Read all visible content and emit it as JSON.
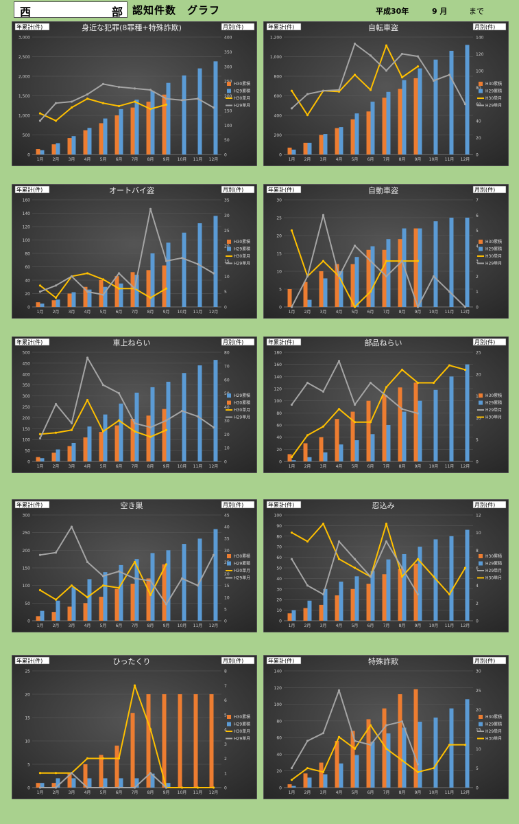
{
  "header": {
    "region_left": "西",
    "region_right": "部",
    "title": "認知件数　グラフ",
    "era_year": "平成30年",
    "month": "9 月",
    "until": "まで"
  },
  "labels": {
    "left_axis": "年累計(件)",
    "right_axis": "月別(件)"
  },
  "colors": {
    "bg_outer": "#a9d18e",
    "chart_bg": "#3a3a3a",
    "h30_cum": "#ed7d31",
    "h29_cum": "#5b9bd5",
    "h30_month": "#ffc000",
    "h29_month": "#a5a5a5"
  },
  "chart_data": [
    {
      "type": "bar",
      "title": "身近な犯罪(8罪種+特殊詐欺)",
      "categories": [
        "1月",
        "2月",
        "3月",
        "4月",
        "5月",
        "6月",
        "7月",
        "8月",
        "9月",
        "10月",
        "11月",
        "12月"
      ],
      "ylim": [
        0,
        3000
      ],
      "y_step": 500,
      "y2lim": [
        0,
        400
      ],
      "y2_step": 50,
      "legend_order": [
        "h30_cum",
        "h29_cum",
        "h30_month",
        "h29_month"
      ],
      "series": [
        {
          "name": "H30累積",
          "key": "h30_cum",
          "axis": "left",
          "values": [
            140,
            260,
            420,
            620,
            800,
            1000,
            1200,
            1350,
            1530,
            null,
            null,
            null
          ]
        },
        {
          "name": "H29累積",
          "key": "h29_cum",
          "axis": "left",
          "values": [
            110,
            290,
            470,
            680,
            920,
            1160,
            1400,
            1620,
            1830,
            2020,
            2200,
            2380
          ]
        },
        {
          "name": "H30単月",
          "key": "h30_month",
          "axis": "right",
          "values": [
            140,
            115,
            160,
            190,
            175,
            165,
            180,
            155,
            170,
            null,
            null,
            null
          ]
        },
        {
          "name": "H29単月",
          "key": "h29_month",
          "axis": "right",
          "values": [
            115,
            175,
            180,
            205,
            240,
            230,
            225,
            220,
            190,
            185,
            190,
            160
          ]
        }
      ]
    },
    {
      "type": "bar",
      "title": "自転車盗",
      "categories": [
        "1月",
        "2月",
        "3月",
        "4月",
        "5月",
        "6月",
        "7月",
        "8月",
        "9月",
        "10月",
        "11月",
        "12月"
      ],
      "ylim": [
        0,
        1200
      ],
      "y_step": 200,
      "y2lim": [
        0,
        140
      ],
      "y2_step": 20,
      "legend_order": [
        "h30_cum",
        "h29_cum",
        "h30_month",
        "h29_month"
      ],
      "series": [
        {
          "name": "H30累積",
          "key": "h30_cum",
          "axis": "left",
          "values": [
            70,
            120,
            200,
            270,
            360,
            440,
            580,
            670,
            780,
            null,
            null,
            null
          ]
        },
        {
          "name": "H29累積",
          "key": "h29_cum",
          "axis": "left",
          "values": [
            50,
            120,
            210,
            280,
            420,
            540,
            640,
            760,
            880,
            970,
            1060,
            1120
          ]
        },
        {
          "name": "H30単月",
          "key": "h30_month",
          "axis": "right",
          "values": [
            76,
            47,
            76,
            75,
            95,
            77,
            130,
            92,
            105,
            null,
            null,
            null
          ]
        },
        {
          "name": "H29単月",
          "key": "h29_month",
          "axis": "right",
          "values": [
            55,
            72,
            76,
            77,
            132,
            118,
            100,
            120,
            117,
            88,
            95,
            60
          ]
        }
      ]
    },
    {
      "type": "bar",
      "title": "オートバイ盗",
      "categories": [
        "1月",
        "2月",
        "3月",
        "4月",
        "5月",
        "6月",
        "7月",
        "8月",
        "9月",
        "10月",
        "11月",
        "12月"
      ],
      "ylim": [
        0,
        160
      ],
      "y_step": 20,
      "y2lim": [
        0,
        35
      ],
      "y2_step": 5,
      "legend_order": [
        "h30_cum",
        "h29_cum",
        "h30_month",
        "h29_month"
      ],
      "series": [
        {
          "name": "H30累積",
          "key": "h30_cum",
          "axis": "left",
          "values": [
            7,
            10,
            20,
            30,
            40,
            46,
            52,
            55,
            62,
            null,
            null,
            null
          ]
        },
        {
          "name": "H29累積",
          "key": "h29_cum",
          "axis": "left",
          "values": [
            5,
            11,
            22,
            26,
            30,
            35,
            48,
            80,
            96,
            111,
            125,
            136
          ]
        },
        {
          "name": "H30単月",
          "key": "h30_month",
          "axis": "right",
          "values": [
            7,
            3,
            10,
            11,
            9,
            6,
            6,
            3,
            6,
            null,
            null,
            null
          ]
        },
        {
          "name": "H29単月",
          "key": "h29_month",
          "axis": "right",
          "values": [
            5,
            7,
            10,
            5,
            4,
            11,
            6,
            32,
            15,
            16,
            14,
            11
          ]
        }
      ]
    },
    {
      "type": "bar",
      "title": "自動車盗",
      "categories": [
        "1月",
        "2月",
        "3月",
        "4月",
        "5月",
        "6月",
        "7月",
        "8月",
        "9月",
        "10月",
        "11月",
        "12月"
      ],
      "ylim": [
        0,
        30
      ],
      "y_step": 5,
      "y2lim": [
        0,
        7
      ],
      "y2_step": 1,
      "legend_order": [
        "h30_cum",
        "h29_cum",
        "h30_month",
        "h29_month"
      ],
      "series": [
        {
          "name": "H30累積",
          "key": "h30_cum",
          "axis": "left",
          "values": [
            5,
            7,
            10,
            12,
            12,
            16,
            16,
            19,
            22,
            null,
            null,
            null
          ]
        },
        {
          "name": "H29累積",
          "key": "h29_cum",
          "axis": "left",
          "values": [
            0,
            2,
            8,
            10,
            14,
            17,
            19,
            22,
            22,
            24,
            25,
            25
          ]
        },
        {
          "name": "H30単月",
          "key": "h30_month",
          "axis": "right",
          "values": [
            5,
            2,
            3,
            2,
            0,
            1,
            3,
            3,
            3,
            null,
            null,
            null
          ]
        },
        {
          "name": "H29単月",
          "key": "h29_month",
          "axis": "right",
          "values": [
            0,
            2,
            6,
            2,
            4,
            3,
            2,
            3,
            0,
            2,
            1,
            0
          ]
        }
      ]
    },
    {
      "type": "bar",
      "title": "車上ねらい",
      "categories": [
        "1月",
        "2月",
        "3月",
        "4月",
        "5月",
        "6月",
        "7月",
        "8月",
        "9月",
        "10月",
        "11月",
        "12月"
      ],
      "ylim": [
        0,
        500
      ],
      "y_step": 50,
      "y2lim": [
        0,
        80
      ],
      "y2_step": 10,
      "legend_order": [
        "h29_cum",
        "h30_cum",
        "h30_month",
        "h29_month"
      ],
      "series": [
        {
          "name": "H30累積",
          "key": "h30_cum",
          "axis": "left",
          "values": [
            20,
            40,
            70,
            110,
            135,
            165,
            195,
            210,
            240,
            null,
            null,
            null
          ]
        },
        {
          "name": "H29累積",
          "key": "h29_cum",
          "axis": "left",
          "values": [
            15,
            55,
            85,
            160,
            215,
            265,
            315,
            340,
            365,
            405,
            440,
            465
          ]
        },
        {
          "name": "H30単月",
          "key": "h30_month",
          "axis": "right",
          "values": [
            20,
            21,
            23,
            45,
            22,
            30,
            22,
            18,
            23,
            null,
            null,
            null
          ]
        },
        {
          "name": "H29単月",
          "key": "h29_month",
          "axis": "right",
          "values": [
            17,
            42,
            28,
            76,
            56,
            50,
            28,
            25,
            30,
            37,
            33,
            25
          ]
        }
      ]
    },
    {
      "type": "bar",
      "title": "部品ねらい",
      "categories": [
        "1月",
        "2月",
        "3月",
        "4月",
        "5月",
        "6月",
        "7月",
        "8月",
        "9月",
        "10月",
        "11月",
        "12月"
      ],
      "ylim": [
        0,
        180
      ],
      "y_step": 20,
      "y2lim": [
        0,
        25
      ],
      "y2_step": 5,
      "legend_order": [
        "h30_cum",
        "h29_cum",
        "h29_month",
        "h30_month"
      ],
      "series": [
        {
          "name": "H30累積",
          "key": "h30_cum",
          "axis": "left",
          "values": [
            12,
            30,
            40,
            70,
            82,
            100,
            110,
            122,
            130,
            null,
            null,
            null
          ]
        },
        {
          "name": "H29累積",
          "key": "h29_cum",
          "axis": "left",
          "values": [
            2,
            7,
            15,
            28,
            35,
            45,
            60,
            82,
            100,
            118,
            140,
            160
          ]
        },
        {
          "name": "H30単月",
          "key": "h30_month",
          "axis": "right",
          "values": [
            1,
            6,
            8,
            12,
            9,
            9,
            17,
            21,
            18,
            18,
            22,
            21
          ]
        },
        {
          "name": "H29単月",
          "key": "h29_month",
          "axis": "right",
          "values": [
            13,
            18,
            16,
            23,
            13,
            18,
            15,
            12,
            11,
            null,
            null,
            null
          ]
        }
      ]
    },
    {
      "type": "bar",
      "title": "空き巣",
      "categories": [
        "1月",
        "2月",
        "3月",
        "4月",
        "5月",
        "6月",
        "7月",
        "8月",
        "9月",
        "10月",
        "11月",
        "12月"
      ],
      "ylim": [
        0,
        300
      ],
      "y_step": 50,
      "y2lim": [
        0,
        45
      ],
      "y2_step": 5,
      "legend_order": [
        "h30_cum",
        "h29_cum",
        "h30_month",
        "h29_month"
      ],
      "series": [
        {
          "name": "H30累積",
          "key": "h30_cum",
          "axis": "left",
          "values": [
            13,
            25,
            40,
            50,
            68,
            90,
            105,
            120,
            160,
            null,
            null,
            null
          ]
        },
        {
          "name": "H29累積",
          "key": "h29_cum",
          "axis": "left",
          "values": [
            28,
            57,
            95,
            118,
            138,
            158,
            175,
            192,
            200,
            218,
            233,
            260
          ]
        },
        {
          "name": "H30単月",
          "key": "h30_month",
          "axis": "right",
          "values": [
            13,
            9,
            15,
            10,
            15,
            14,
            25,
            11,
            24,
            null,
            null,
            null
          ]
        },
        {
          "name": "H29単月",
          "key": "h29_month",
          "axis": "right",
          "values": [
            28,
            29,
            40,
            25,
            19,
            21,
            18,
            17,
            7,
            18,
            15,
            28
          ]
        }
      ]
    },
    {
      "type": "bar",
      "title": "忍込み",
      "categories": [
        "1月",
        "2月",
        "3月",
        "4月",
        "5月",
        "6月",
        "7月",
        "8月",
        "9月",
        "10月",
        "11月",
        "12月"
      ],
      "ylim": [
        0,
        100
      ],
      "y_step": 10,
      "y2lim": [
        0,
        12
      ],
      "y2_step": 2,
      "legend_order": [
        "h30_cum",
        "h29_cum",
        "h29_month",
        "h30_month"
      ],
      "series": [
        {
          "name": "H30累積",
          "key": "h30_cum",
          "axis": "left",
          "values": [
            7,
            12,
            15,
            24,
            30,
            35,
            44,
            49,
            54,
            null,
            null,
            null
          ]
        },
        {
          "name": "H29累積",
          "key": "h29_cum",
          "axis": "left",
          "values": [
            10,
            19,
            30,
            37,
            42,
            47,
            58,
            63,
            70,
            77,
            80,
            86
          ]
        },
        {
          "name": "H30単月",
          "key": "h30_month",
          "axis": "right",
          "values": [
            10,
            9,
            11,
            7,
            6,
            5,
            11,
            5,
            7,
            5,
            3,
            6
          ]
        },
        {
          "name": "H29単月",
          "key": "h29_month",
          "axis": "right",
          "values": [
            7,
            4,
            3,
            9,
            7,
            5,
            9,
            6,
            3,
            null,
            null,
            null
          ]
        }
      ]
    },
    {
      "type": "bar",
      "title": "ひったくり",
      "categories": [
        "1月",
        "2月",
        "3月",
        "4月",
        "5月",
        "6月",
        "7月",
        "8月",
        "9月",
        "10月",
        "11月",
        "12月"
      ],
      "ylim": [
        0,
        25
      ],
      "y_step": 5,
      "y2lim": [
        0,
        8
      ],
      "y2_step": 1,
      "legend_order": [
        "h30_cum",
        "h29_cum",
        "h30_month",
        "h29_month"
      ],
      "series": [
        {
          "name": "H30累積",
          "key": "h30_cum",
          "axis": "left",
          "values": [
            1,
            1,
            3,
            5,
            7,
            9,
            16,
            20,
            20,
            20,
            20,
            20
          ]
        },
        {
          "name": "H29累積",
          "key": "h29_cum",
          "axis": "left",
          "values": [
            1,
            2,
            2,
            2,
            2,
            2,
            2,
            3,
            1,
            null,
            null,
            null
          ]
        },
        {
          "name": "H30単月",
          "key": "h30_month",
          "axis": "right",
          "values": [
            1,
            1,
            1,
            2,
            2,
            2,
            7,
            4,
            0,
            0,
            0,
            0
          ]
        },
        {
          "name": "H29単月",
          "key": "h29_month",
          "axis": "right",
          "values": [
            0,
            0,
            1,
            0,
            0,
            0,
            0,
            1,
            0,
            null,
            null,
            null
          ]
        }
      ]
    },
    {
      "type": "bar",
      "title": "特殊詐欺",
      "categories": [
        "1月",
        "2月",
        "3月",
        "4月",
        "5月",
        "6月",
        "7月",
        "8月",
        "9月",
        "10月",
        "11月",
        "12月"
      ],
      "ylim": [
        0,
        140
      ],
      "y_step": 20,
      "y2lim": [
        0,
        30
      ],
      "y2_step": 5,
      "legend_order": [
        "h30_cum",
        "h29_cum",
        "h29_month",
        "h30_month"
      ],
      "series": [
        {
          "name": "H30累積",
          "key": "h30_cum",
          "axis": "left",
          "values": [
            4,
            17,
            30,
            56,
            68,
            82,
            95,
            112,
            118,
            null,
            null,
            null
          ]
        },
        {
          "name": "H29累積",
          "key": "h29_cum",
          "axis": "left",
          "values": [
            2,
            12,
            16,
            29,
            39,
            55,
            65,
            72,
            79,
            84,
            95,
            106
          ]
        },
        {
          "name": "H30単月",
          "key": "h30_month",
          "axis": "right",
          "values": [
            2,
            5,
            4,
            13,
            10,
            16,
            10,
            7,
            4,
            5,
            11,
            11
          ]
        },
        {
          "name": "H29単月",
          "key": "h29_month",
          "axis": "right",
          "values": [
            5,
            12,
            14,
            25,
            12,
            11,
            16,
            17,
            6,
            null,
            null,
            null
          ]
        }
      ]
    }
  ]
}
